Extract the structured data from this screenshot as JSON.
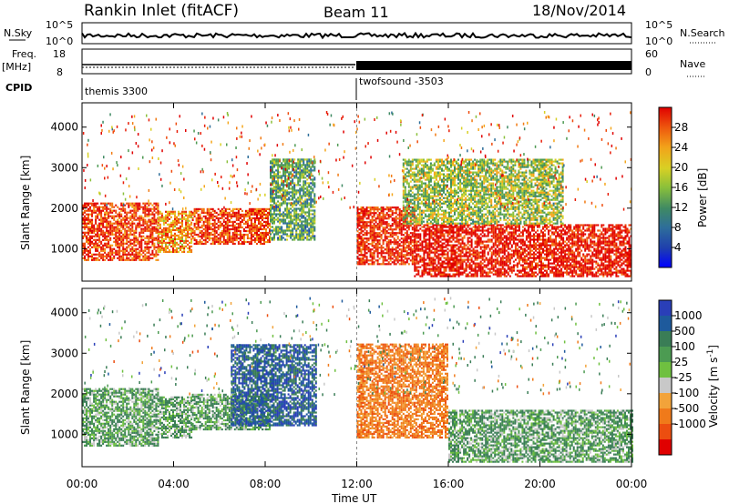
{
  "header": {
    "title": "Rankin Inlet (fitACF)",
    "beam": "Beam 11",
    "date": "18/Nov/2014"
  },
  "strips": {
    "nsky_label": "N.Sky",
    "nsky_ticks": [
      "10^5",
      "10^0"
    ],
    "nsearch_label": "N.Search",
    "nsearch_ticks": [
      "10^5",
      "10^0"
    ],
    "freq_label": "Freq.",
    "freq_unit": "[MHz]",
    "freq_ticks": [
      "18",
      "8"
    ],
    "nave_label": "Nave",
    "nave_ticks": [
      "60",
      "0"
    ],
    "cpid_label": "CPID",
    "cpid_segments": [
      {
        "name": "themis 3300",
        "start_hour": 0
      },
      {
        "name": "twofsound -3503",
        "start_hour": 12
      }
    ]
  },
  "chart_data": [
    {
      "type": "heatmap",
      "name": "power",
      "ylabel": "Slant Range [km]",
      "yticks": [
        "4000",
        "3000",
        "2000",
        "1000"
      ],
      "ylim": [
        200,
        4600
      ],
      "xlim": [
        0,
        24
      ],
      "colorbar": {
        "label": "Power [dB]",
        "ticks": [
          "28",
          "24",
          "20",
          "16",
          "12",
          "8",
          "4"
        ],
        "range": [
          0,
          32
        ],
        "colors": [
          "#0000ff",
          "#1f3fae",
          "#2e6e9a",
          "#3f8a63",
          "#4d9a52",
          "#8ac03a",
          "#d8d024",
          "#f4a61a",
          "#f27a12",
          "#ee4a0c",
          "#e81d08",
          "#e00000"
        ]
      },
      "bands": [
        {
          "start": 0.0,
          "end": 3.3,
          "range": [
            700,
            2100
          ],
          "level": 0.85
        },
        {
          "start": 3.3,
          "end": 4.8,
          "range": [
            900,
            1900
          ],
          "level": 0.7
        },
        {
          "start": 4.8,
          "end": 8.2,
          "range": [
            1100,
            2000
          ],
          "level": 0.85
        },
        {
          "start": 8.2,
          "end": 10.2,
          "range": [
            1200,
            3200
          ],
          "level": 0.35
        },
        {
          "start": 12.0,
          "end": 14.5,
          "range": [
            600,
            2000
          ],
          "level": 0.9
        },
        {
          "start": 14.5,
          "end": 24.0,
          "range": [
            300,
            1600
          ],
          "level": 0.95
        },
        {
          "start": 14.0,
          "end": 21.0,
          "range": [
            1600,
            3200
          ],
          "level": 0.45
        }
      ]
    },
    {
      "type": "heatmap",
      "name": "velocity",
      "ylabel": "Slant Range [km]",
      "yticks": [
        "4000",
        "3000",
        "2000",
        "1000"
      ],
      "ylim": [
        200,
        4600
      ],
      "xlim": [
        0,
        24
      ],
      "colorbar": {
        "label": "Velocity [m s^-1]",
        "ticks": [
          "1000",
          "500",
          "100",
          "25",
          "-25",
          "-100",
          "-500",
          "-1000"
        ],
        "colors": [
          "#2a3fb8",
          "#1e5a9c",
          "#3a7d56",
          "#4c9b52",
          "#6fc040",
          "#c8c8c8",
          "#f2a33a",
          "#f07a1a",
          "#ec4e10",
          "#e00000"
        ]
      },
      "bands": [
        {
          "start": 0.0,
          "end": 3.3,
          "range": [
            700,
            2100
          ],
          "tone": "green"
        },
        {
          "start": 3.3,
          "end": 4.8,
          "range": [
            900,
            1900
          ],
          "tone": "green"
        },
        {
          "start": 4.8,
          "end": 8.2,
          "range": [
            1100,
            2000
          ],
          "tone": "green"
        },
        {
          "start": 6.5,
          "end": 10.2,
          "range": [
            1200,
            3200
          ],
          "tone": "blue"
        },
        {
          "start": 12.0,
          "end": 16.0,
          "range": [
            900,
            3200
          ],
          "tone": "orange"
        },
        {
          "start": 16.0,
          "end": 24.0,
          "range": [
            300,
            1600
          ],
          "tone": "green"
        }
      ]
    }
  ],
  "x_axis": {
    "label": "Time UT",
    "ticks": [
      "00:00",
      "04:00",
      "08:00",
      "12:00",
      "16:00",
      "20:00",
      "00:00"
    ]
  }
}
